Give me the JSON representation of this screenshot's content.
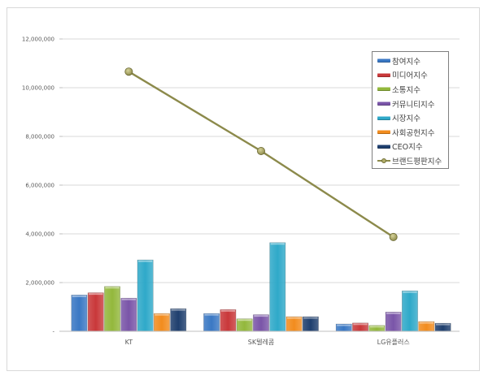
{
  "chart_data": {
    "type": "bar",
    "combo": "bar+line",
    "title": "",
    "xlabel": "",
    "ylabel": "",
    "ylim": [
      0,
      12000000
    ],
    "yticks": [
      0,
      2000000,
      4000000,
      6000000,
      8000000,
      10000000,
      12000000
    ],
    "ytick_labels": [
      "-",
      "2,000,000",
      "4,000,000",
      "6,000,000",
      "8,000,000",
      "10,000,000",
      "12,000,000"
    ],
    "grid": true,
    "legend_position": "right-top (inside plot)",
    "categories": [
      "KT",
      "SK텔레콤",
      "LG유플러스"
    ],
    "series": [
      {
        "name": "참여지수",
        "type": "bar",
        "color": "#3a78c4",
        "values": [
          1490000,
          730000,
          300000
        ]
      },
      {
        "name": "미디어지수",
        "type": "bar",
        "color": "#c9383a",
        "values": [
          1580000,
          890000,
          340000
        ]
      },
      {
        "name": "소통지수",
        "type": "bar",
        "color": "#93b83c",
        "values": [
          1840000,
          510000,
          240000
        ]
      },
      {
        "name": "커뮤니티지수",
        "type": "bar",
        "color": "#7a55a8",
        "values": [
          1360000,
          680000,
          790000
        ]
      },
      {
        "name": "시장지수",
        "type": "bar",
        "color": "#2fa9c9",
        "values": [
          2930000,
          3640000,
          1660000
        ]
      },
      {
        "name": "사회공헌지수",
        "type": "bar",
        "color": "#f28c1e",
        "values": [
          730000,
          600000,
          400000
        ]
      },
      {
        "name": "CEO지수",
        "type": "bar",
        "color": "#1f3f6e",
        "values": [
          930000,
          600000,
          330000
        ]
      },
      {
        "name": "브랜드평판지수",
        "type": "line",
        "color": "#8c8a4b",
        "values": [
          10660000,
          7400000,
          3870000
        ]
      }
    ]
  },
  "legend": {
    "items": [
      {
        "label": "참여지수",
        "color": "#3a78c4",
        "kind": "bar"
      },
      {
        "label": "미디어지수",
        "color": "#c9383a",
        "kind": "bar"
      },
      {
        "label": "소통지수",
        "color": "#93b83c",
        "kind": "bar"
      },
      {
        "label": "커뮤니티지수",
        "color": "#7a55a8",
        "kind": "bar"
      },
      {
        "label": "시장지수",
        "color": "#2fa9c9",
        "kind": "bar"
      },
      {
        "label": "사회공헌지수",
        "color": "#f28c1e",
        "kind": "bar"
      },
      {
        "label": "CEO지수",
        "color": "#1f3f6e",
        "kind": "bar"
      },
      {
        "label": "브랜드평판지수",
        "color": "#8c8a4b",
        "kind": "line"
      }
    ]
  }
}
